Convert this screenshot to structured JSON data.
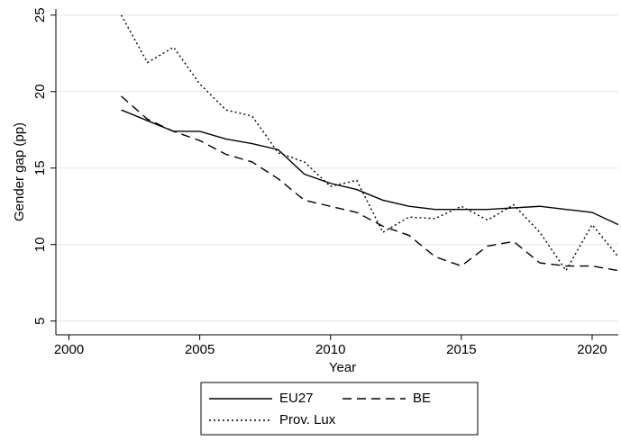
{
  "chart_data": {
    "type": "line",
    "x_label": "Year",
    "y_label": "Gender gap (pp)",
    "x": [
      2002,
      2003,
      2004,
      2005,
      2006,
      2007,
      2008,
      2009,
      2010,
      2011,
      2012,
      2013,
      2014,
      2015,
      2016,
      2017,
      2018,
      2019,
      2020,
      2021
    ],
    "series": [
      {
        "name": "EU27",
        "color": "#000000",
        "dash": "solid",
        "values": [
          18.8,
          18.1,
          17.4,
          17.4,
          16.9,
          16.6,
          16.2,
          14.6,
          14.0,
          13.6,
          12.9,
          12.5,
          12.3,
          12.3,
          12.3,
          12.4,
          12.5,
          12.3,
          12.1,
          11.3
        ]
      },
      {
        "name": "BE",
        "color": "#000000",
        "dash": "dashed",
        "values": [
          19.7,
          18.2,
          17.4,
          16.8,
          15.9,
          15.4,
          14.3,
          12.9,
          12.5,
          12.1,
          11.2,
          10.6,
          9.2,
          8.6,
          9.9,
          10.2,
          8.8,
          8.6,
          8.6,
          8.3
        ]
      },
      {
        "name": "Prov. Lux",
        "color": "#000000",
        "dash": "dotted",
        "values": [
          25.0,
          21.9,
          22.9,
          20.5,
          18.8,
          18.4,
          16.0,
          15.4,
          13.8,
          14.2,
          10.8,
          11.8,
          11.7,
          12.5,
          11.6,
          12.6,
          10.8,
          8.3,
          11.3,
          9.2
        ]
      }
    ],
    "xlim": [
      1999.5,
      2021
    ],
    "xticks": [
      2000,
      2005,
      2010,
      2015,
      2020
    ],
    "ylim": [
      4.1,
      25.4
    ],
    "yticks": [
      5,
      10,
      15,
      20,
      25
    ],
    "grid": true,
    "legend": "bottom"
  }
}
